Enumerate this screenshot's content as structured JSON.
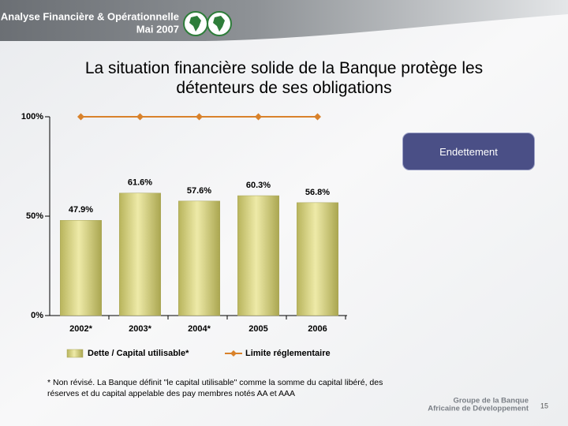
{
  "header": {
    "title": "Analyse Financière & Opérationnelle",
    "date": "Mai 2007"
  },
  "button": "Endettement",
  "footnote": "* Non révisé. La Banque définit \"le capital utilisable\" comme la somme du capital libéré, des réserves et du capital appelable des pay membres notés AA et AAA",
  "footer": {
    "org_line1": "Groupe de la Banque",
    "org_line2": "Africaine de Développement",
    "page": "15"
  },
  "chart_data": {
    "type": "bar",
    "title": "La situation financière solide de la Banque protège les détenteurs de ses obligations",
    "categories": [
      "2002*",
      "2003*",
      "2004*",
      "2005",
      "2006"
    ],
    "series": [
      {
        "name": "Dette / Capital utilisable*",
        "color": "#d6d27e",
        "values": [
          47.9,
          61.6,
          57.6,
          60.3,
          56.8
        ],
        "value_labels": [
          "47.9%",
          "61.6%",
          "57.6%",
          "60.3%",
          "56.8%"
        ]
      },
      {
        "name": "Limite réglementaire",
        "type": "line",
        "color": "#d9822b",
        "values": [
          100,
          100,
          100,
          100,
          100
        ]
      }
    ],
    "ylim": [
      0,
      100
    ],
    "yticks": [
      {
        "value": 0,
        "label": "0%"
      },
      {
        "value": 50,
        "label": "50%"
      },
      {
        "value": 100,
        "label": "100%"
      }
    ],
    "grid": false
  }
}
